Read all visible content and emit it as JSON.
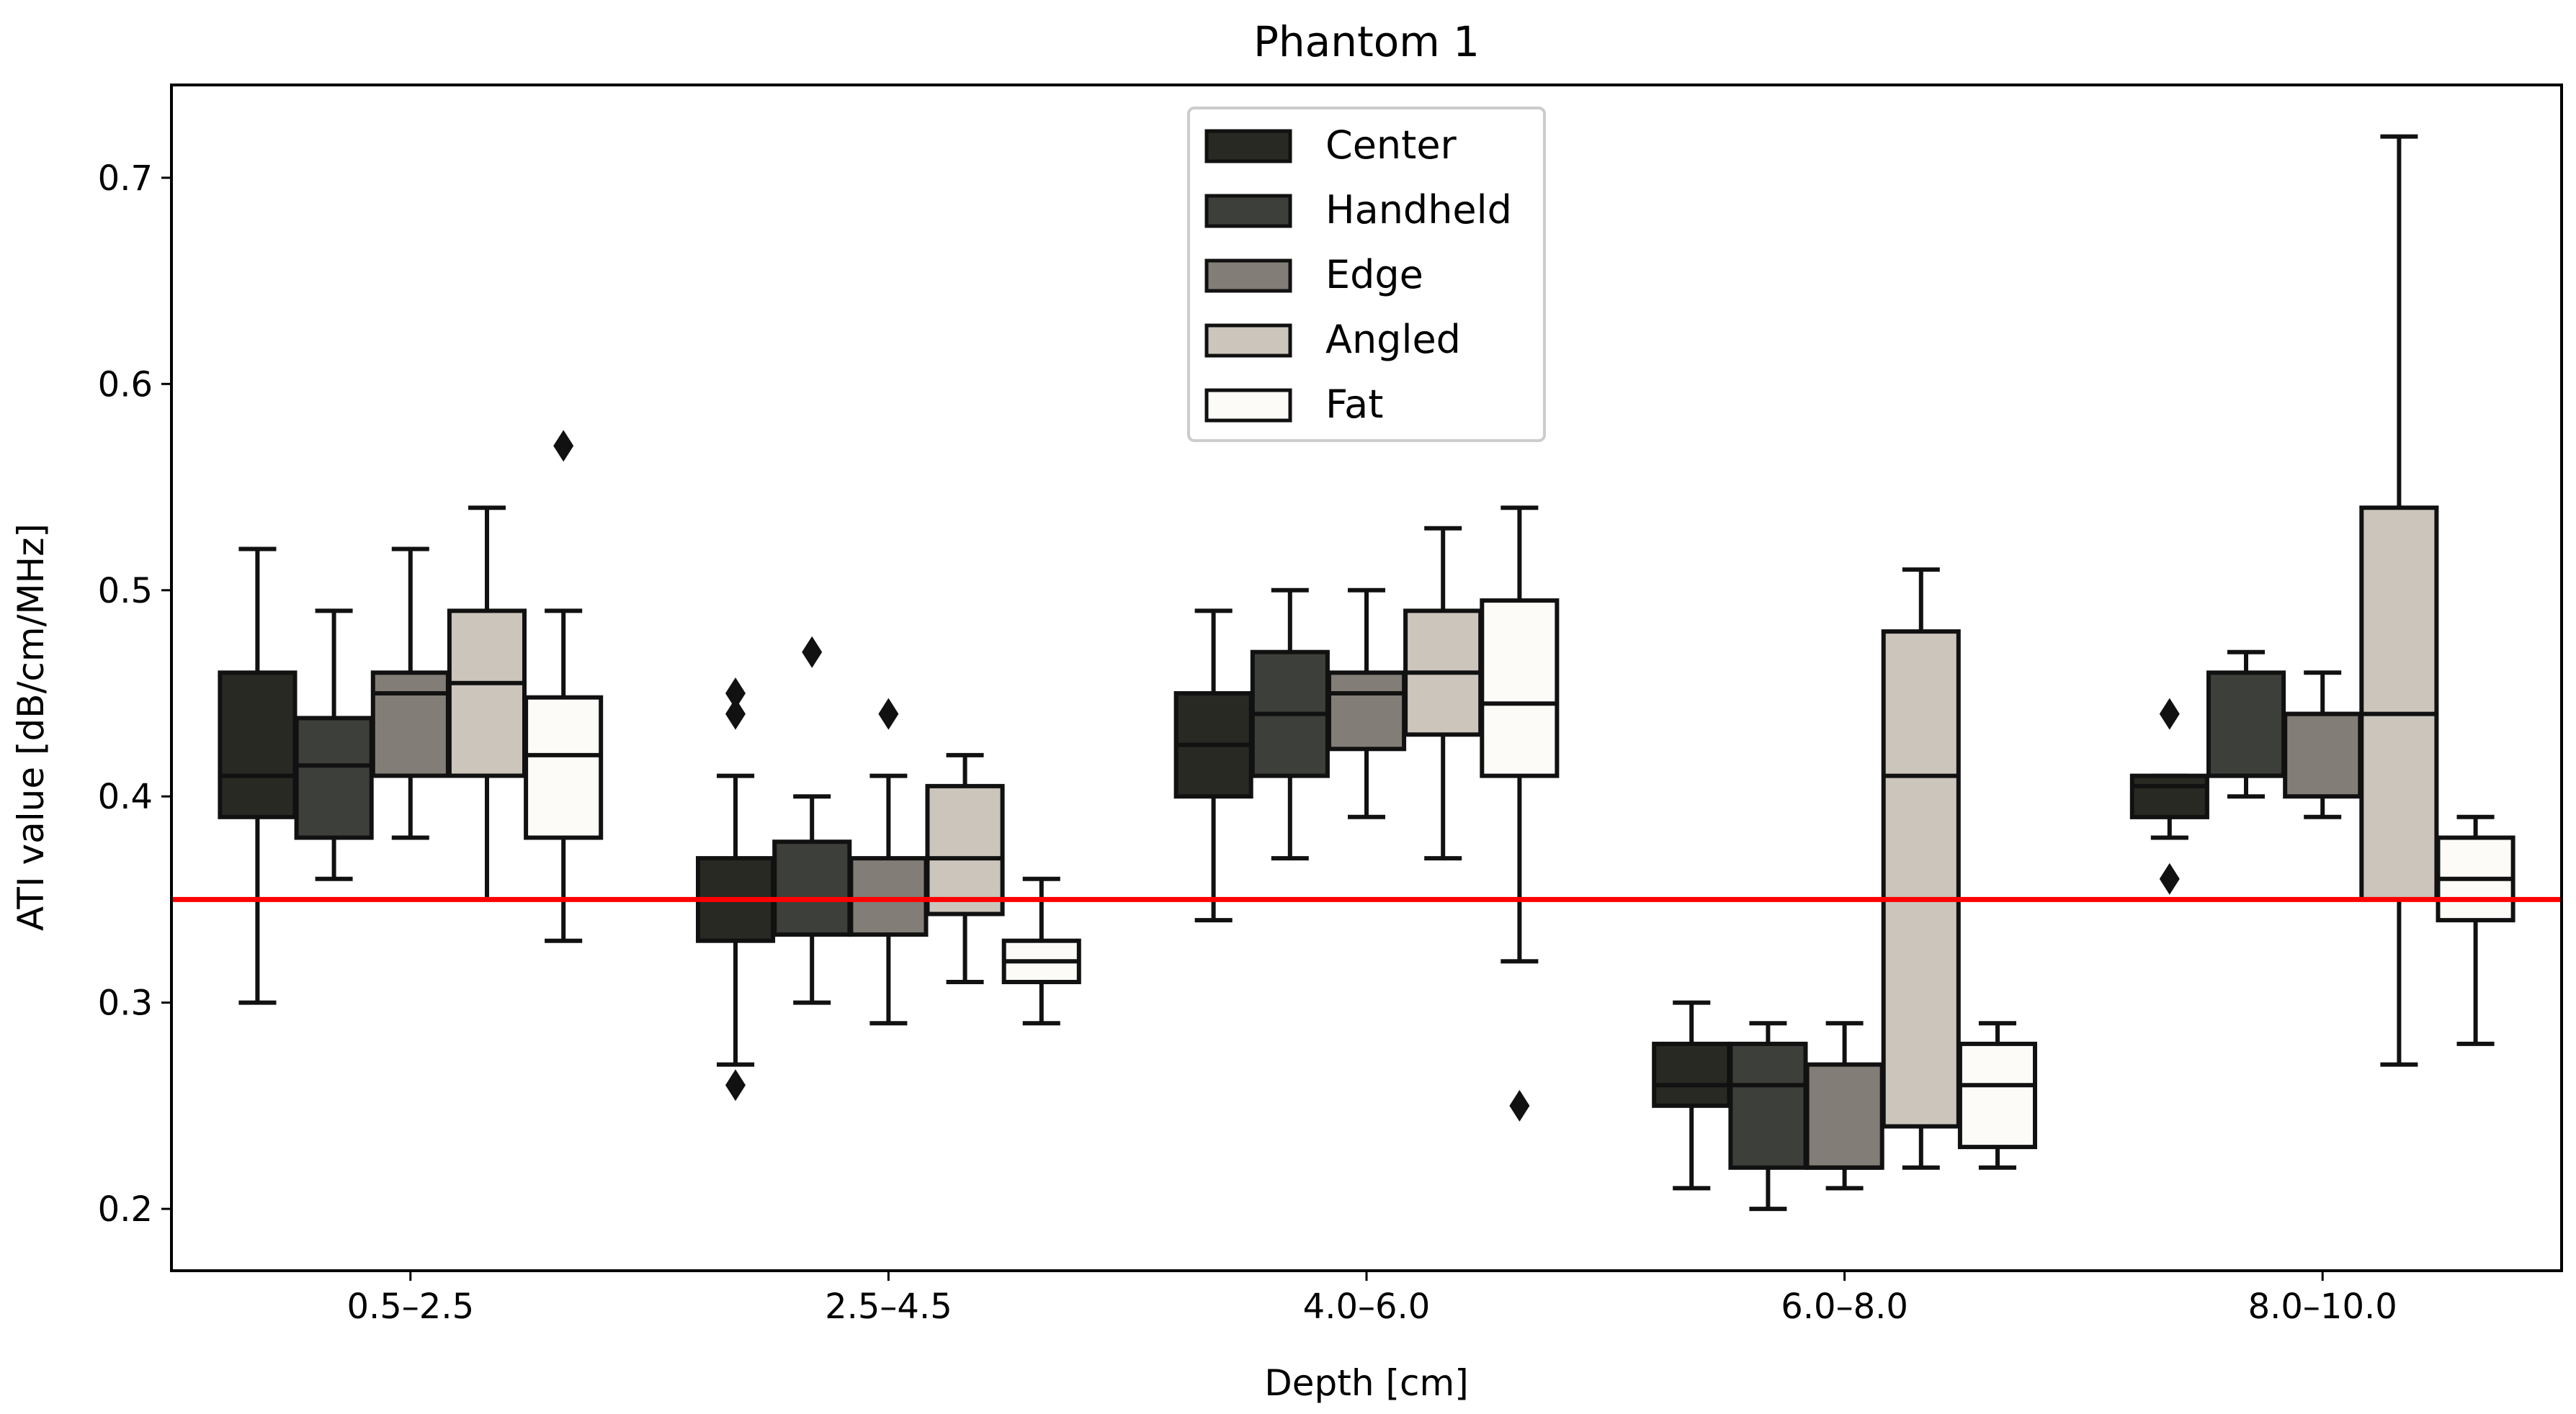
{
  "chart_data": {
    "type": "box",
    "title": "Phantom 1",
    "xlabel": "Depth [cm]",
    "ylabel": "ATI value [dB/cm/MHz]",
    "ylim": [
      0.17,
      0.745
    ],
    "yticks": [
      0.2,
      0.3,
      0.4,
      0.5,
      0.6,
      0.7
    ],
    "ytick_labels": [
      "0.2",
      "0.3",
      "0.4",
      "0.5",
      "0.6",
      "0.7"
    ],
    "categories": [
      "0.5–2.5",
      "2.5–4.5",
      "4.0–6.0",
      "6.0–8.0",
      "8.0–10.0"
    ],
    "reference_line": {
      "value": 0.35,
      "color": "#ff0000"
    },
    "legend_position": "top-center",
    "series": [
      {
        "name": "Center",
        "color": "#282923",
        "boxes": [
          {
            "whislo": 0.3,
            "q1": 0.39,
            "med": 0.41,
            "q3": 0.46,
            "whishi": 0.52,
            "fliers": []
          },
          {
            "whislo": 0.27,
            "q1": 0.33,
            "med": 0.35,
            "q3": 0.37,
            "whishi": 0.41,
            "fliers": [
              0.45,
              0.44,
              0.26
            ]
          },
          {
            "whislo": 0.34,
            "q1": 0.4,
            "med": 0.425,
            "q3": 0.45,
            "whishi": 0.49,
            "fliers": []
          },
          {
            "whislo": 0.21,
            "q1": 0.25,
            "med": 0.26,
            "q3": 0.28,
            "whishi": 0.3,
            "fliers": []
          },
          {
            "whislo": 0.38,
            "q1": 0.39,
            "med": 0.405,
            "q3": 0.41,
            "whishi": 0.41,
            "fliers": [
              0.44,
              0.36
            ]
          }
        ]
      },
      {
        "name": "Handheld",
        "color": "#3d3f3a",
        "boxes": [
          {
            "whislo": 0.36,
            "q1": 0.38,
            "med": 0.415,
            "q3": 0.438,
            "whishi": 0.49,
            "fliers": []
          },
          {
            "whislo": 0.3,
            "q1": 0.333,
            "med": 0.35,
            "q3": 0.378,
            "whishi": 0.4,
            "fliers": [
              0.47
            ]
          },
          {
            "whislo": 0.37,
            "q1": 0.41,
            "med": 0.44,
            "q3": 0.47,
            "whishi": 0.5,
            "fliers": []
          },
          {
            "whislo": 0.2,
            "q1": 0.22,
            "med": 0.26,
            "q3": 0.28,
            "whishi": 0.29,
            "fliers": []
          },
          {
            "whislo": 0.4,
            "q1": 0.41,
            "med": 0.41,
            "q3": 0.46,
            "whishi": 0.47,
            "fliers": []
          }
        ]
      },
      {
        "name": "Edge",
        "color": "#827d76",
        "boxes": [
          {
            "whislo": 0.38,
            "q1": 0.41,
            "med": 0.45,
            "q3": 0.46,
            "whishi": 0.52,
            "fliers": []
          },
          {
            "whislo": 0.29,
            "q1": 0.333,
            "med": 0.35,
            "q3": 0.37,
            "whishi": 0.41,
            "fliers": [
              0.44
            ]
          },
          {
            "whislo": 0.39,
            "q1": 0.423,
            "med": 0.45,
            "q3": 0.46,
            "whishi": 0.5,
            "fliers": []
          },
          {
            "whislo": 0.21,
            "q1": 0.22,
            "med": 0.22,
            "q3": 0.27,
            "whishi": 0.29,
            "fliers": []
          },
          {
            "whislo": 0.39,
            "q1": 0.4,
            "med": 0.44,
            "q3": 0.44,
            "whishi": 0.46,
            "fliers": []
          }
        ]
      },
      {
        "name": "Angled",
        "color": "#ccc5bc",
        "boxes": [
          {
            "whislo": 0.35,
            "q1": 0.41,
            "med": 0.455,
            "q3": 0.49,
            "whishi": 0.54,
            "fliers": []
          },
          {
            "whislo": 0.31,
            "q1": 0.343,
            "med": 0.37,
            "q3": 0.405,
            "whishi": 0.42,
            "fliers": []
          },
          {
            "whislo": 0.37,
            "q1": 0.43,
            "med": 0.46,
            "q3": 0.49,
            "whishi": 0.53,
            "fliers": []
          },
          {
            "whislo": 0.22,
            "q1": 0.24,
            "med": 0.41,
            "q3": 0.48,
            "whishi": 0.51,
            "fliers": []
          },
          {
            "whislo": 0.27,
            "q1": 0.35,
            "med": 0.44,
            "q3": 0.54,
            "whishi": 0.72,
            "fliers": []
          }
        ]
      },
      {
        "name": "Fat",
        "color": "#fdfbf8",
        "boxes": [
          {
            "whislo": 0.33,
            "q1": 0.38,
            "med": 0.42,
            "q3": 0.448,
            "whishi": 0.49,
            "fliers": [
              0.57
            ]
          },
          {
            "whislo": 0.29,
            "q1": 0.31,
            "med": 0.32,
            "q3": 0.33,
            "whishi": 0.36,
            "fliers": []
          },
          {
            "whislo": 0.32,
            "q1": 0.41,
            "med": 0.445,
            "q3": 0.495,
            "whishi": 0.54,
            "fliers": [
              0.25
            ]
          },
          {
            "whislo": 0.22,
            "q1": 0.23,
            "med": 0.26,
            "q3": 0.28,
            "whishi": 0.29,
            "fliers": []
          },
          {
            "whislo": 0.28,
            "q1": 0.34,
            "med": 0.36,
            "q3": 0.38,
            "whishi": 0.39,
            "fliers": []
          }
        ]
      }
    ]
  }
}
